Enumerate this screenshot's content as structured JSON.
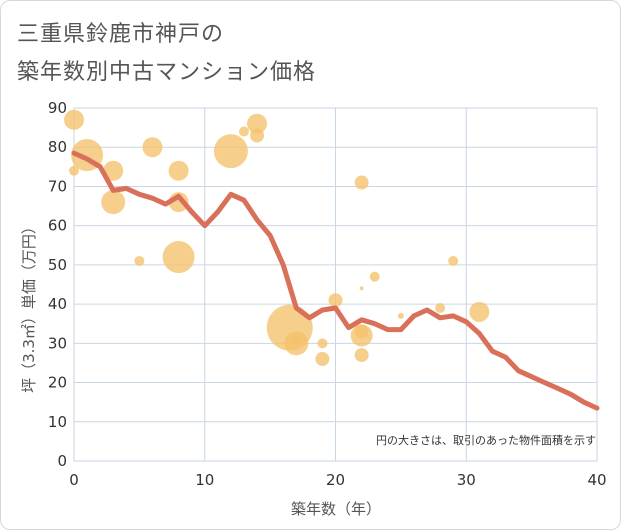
{
  "chart_data": {
    "type": "scatter",
    "title_line1": "三重県鈴鹿市神戸の",
    "title_line2": "築年数別中古マンション価格",
    "xlabel": "築年数（年）",
    "ylabel": "坪（3.3㎡）単価（万円）",
    "note": "円の大きさは、取引のあった物件面積を示す",
    "xlim": [
      0,
      40
    ],
    "ylim": [
      0,
      90
    ],
    "xticks": [
      0,
      10,
      20,
      30,
      40
    ],
    "yticks": [
      0,
      10,
      20,
      30,
      40,
      50,
      60,
      70,
      80,
      90
    ],
    "colors": {
      "bubble": "#f5c26b",
      "line": "#d9705a",
      "grid": "#c9d6e3"
    },
    "bubbles": [
      {
        "x": 0,
        "y": 87,
        "size": 10
      },
      {
        "x": 0,
        "y": 74,
        "size": 5
      },
      {
        "x": 1,
        "y": 78,
        "size": 16
      },
      {
        "x": 3,
        "y": 74,
        "size": 10
      },
      {
        "x": 3,
        "y": 66,
        "size": 12
      },
      {
        "x": 5,
        "y": 51,
        "size": 5
      },
      {
        "x": 6,
        "y": 80,
        "size": 10
      },
      {
        "x": 8,
        "y": 74,
        "size": 10
      },
      {
        "x": 8,
        "y": 66,
        "size": 10
      },
      {
        "x": 8,
        "y": 52,
        "size": 16
      },
      {
        "x": 12,
        "y": 79,
        "size": 17
      },
      {
        "x": 13,
        "y": 84,
        "size": 5
      },
      {
        "x": 14,
        "y": 86,
        "size": 10
      },
      {
        "x": 14,
        "y": 83,
        "size": 7
      },
      {
        "x": 16.5,
        "y": 34,
        "size": 23
      },
      {
        "x": 17,
        "y": 30,
        "size": 12
      },
      {
        "x": 17,
        "y": 31,
        "size": 5
      },
      {
        "x": 19,
        "y": 26,
        "size": 7
      },
      {
        "x": 19,
        "y": 30,
        "size": 5
      },
      {
        "x": 20,
        "y": 41,
        "size": 7
      },
      {
        "x": 22,
        "y": 71,
        "size": 7
      },
      {
        "x": 22,
        "y": 44,
        "size": 2
      },
      {
        "x": 22,
        "y": 33,
        "size": 7
      },
      {
        "x": 22,
        "y": 32,
        "size": 11
      },
      {
        "x": 22,
        "y": 27,
        "size": 7
      },
      {
        "x": 23,
        "y": 47,
        "size": 5
      },
      {
        "x": 25,
        "y": 37,
        "size": 3
      },
      {
        "x": 28,
        "y": 39,
        "size": 5
      },
      {
        "x": 29,
        "y": 51,
        "size": 5
      },
      {
        "x": 31,
        "y": 38,
        "size": 10
      }
    ],
    "line": [
      [
        0,
        78.5
      ],
      [
        1,
        77
      ],
      [
        2,
        75
      ],
      [
        3,
        69
      ],
      [
        4,
        69.5
      ],
      [
        5,
        68
      ],
      [
        6,
        67
      ],
      [
        7,
        65.5
      ],
      [
        8,
        67.5
      ],
      [
        9,
        63.5
      ],
      [
        10,
        60
      ],
      [
        11,
        63.5
      ],
      [
        12,
        68
      ],
      [
        13,
        66.5
      ],
      [
        14,
        61.5
      ],
      [
        15,
        57.5
      ],
      [
        16,
        50
      ],
      [
        17,
        39
      ],
      [
        18,
        36.5
      ],
      [
        19,
        38.5
      ],
      [
        20,
        39
      ],
      [
        21,
        34
      ],
      [
        22,
        36
      ],
      [
        23,
        35
      ],
      [
        24,
        33.5
      ],
      [
        25,
        33.5
      ],
      [
        26,
        37
      ],
      [
        27,
        38.5
      ],
      [
        28,
        36.5
      ],
      [
        29,
        37
      ],
      [
        30,
        35.5
      ],
      [
        31,
        32.5
      ],
      [
        32,
        28
      ],
      [
        33,
        26.5
      ],
      [
        34,
        23
      ],
      [
        35,
        21.5
      ],
      [
        36,
        20
      ],
      [
        37,
        18.5
      ],
      [
        38,
        17
      ],
      [
        39,
        15
      ],
      [
        40,
        13.5
      ]
    ]
  }
}
